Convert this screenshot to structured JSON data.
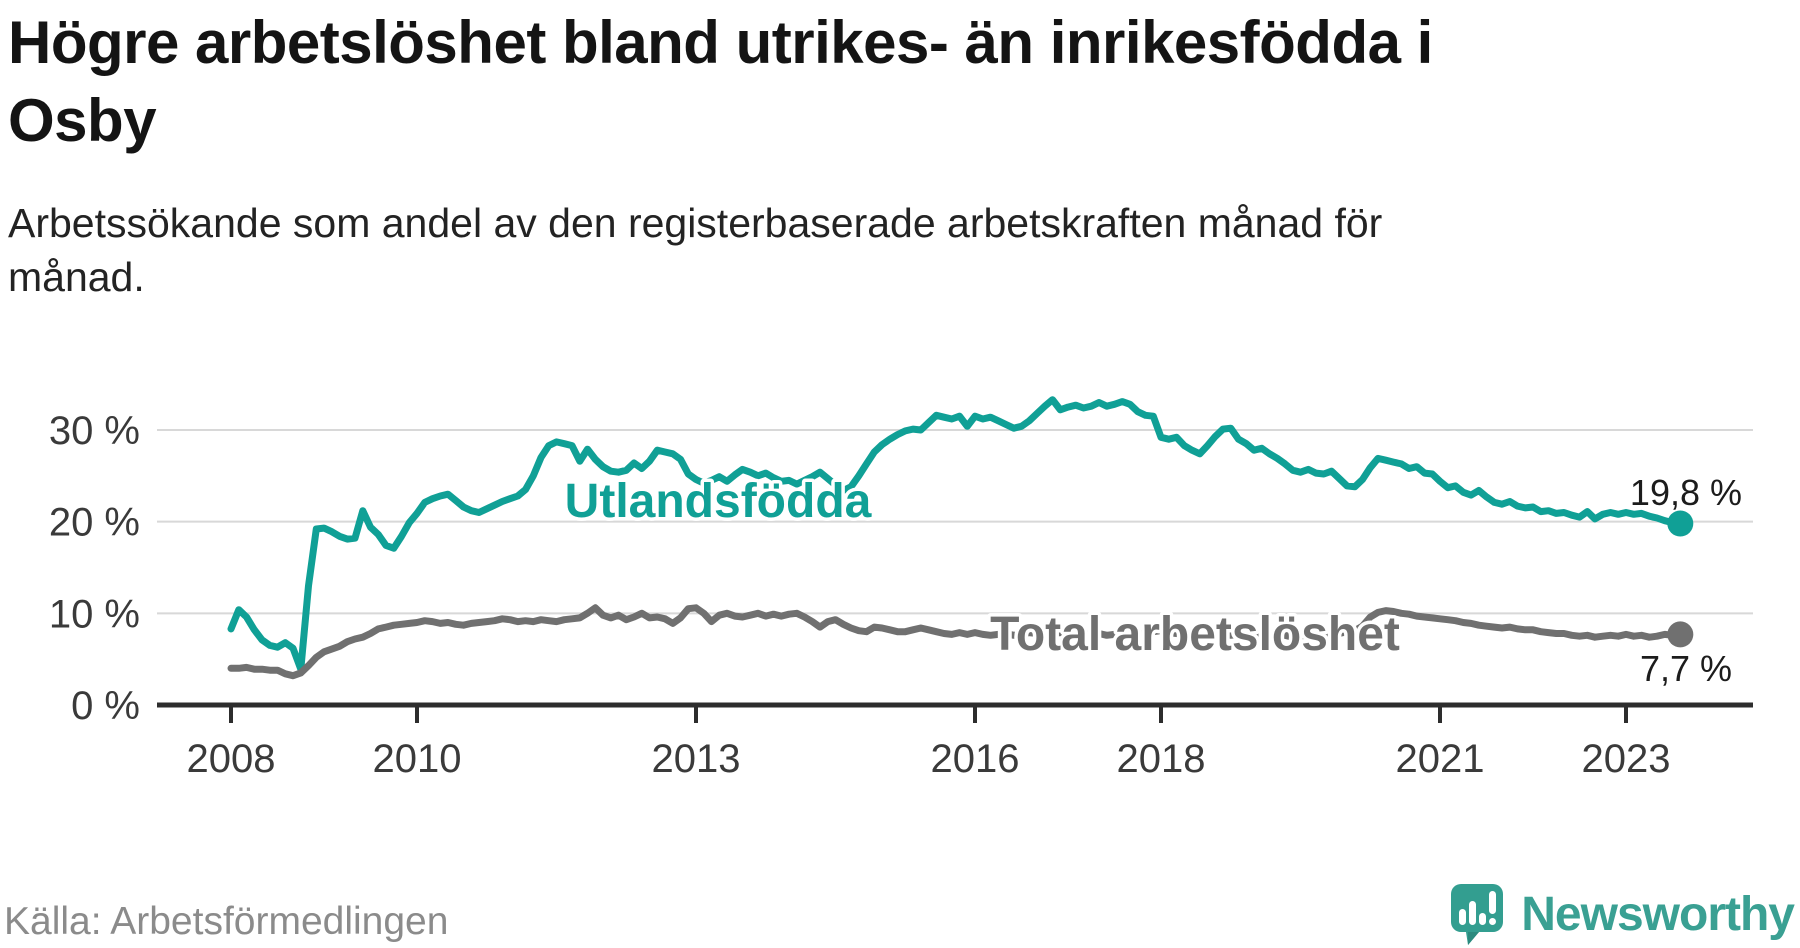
{
  "header": {
    "title_lines": [
      "Högre arbetslöshet bland utrikes- än inrikesfödda i",
      "Osby"
    ],
    "subtitle_lines": [
      "Arbetssökande som andel av den registerbaserade arbetskraften månad för",
      "månad."
    ]
  },
  "footer": {
    "source": "Källa: Arbetsförmedlingen",
    "brand": "Newsworthy"
  },
  "colors": {
    "teal": "#10a096",
    "gray": "#707070",
    "grid": "#d8d8d8",
    "axis": "#2d2d2d",
    "axis_label": "#3a3a3a",
    "value_label": "#1c1c1c",
    "logo": "#339e90"
  },
  "chart_data": {
    "type": "line",
    "title": "Högre arbetslöshet bland utrikes- än inrikesfödda i Osby",
    "subtitle": "Arbetssökande som andel av den registerbaserade arbetskraften månad för månad.",
    "frequency": "monthly",
    "x_start": {
      "year": 2008,
      "month": 1
    },
    "x_end": {
      "year": 2023,
      "month": 8
    },
    "x_axis": {
      "ticks": [
        2008,
        2010,
        2013,
        2016,
        2018,
        2021,
        2023
      ]
    },
    "y_axis": {
      "ticks": [
        0,
        10,
        20,
        30
      ],
      "tick_suffix": " %",
      "range": [
        0,
        41
      ]
    },
    "grid": true,
    "legend_position": "inline-labels",
    "series": [
      {
        "name": "Utlandsfödda",
        "color": "#10a096",
        "end_label": "19,8 %",
        "end_value": 19.8,
        "values": [
          8.3,
          10.4,
          9.6,
          8.2,
          7.1,
          6.5,
          6.3,
          6.8,
          6.2,
          3.9,
          13.0,
          19.2,
          19.3,
          18.9,
          18.4,
          18.1,
          18.2,
          21.2,
          19.4,
          18.6,
          17.4,
          17.1,
          18.4,
          19.9,
          20.9,
          22.1,
          22.5,
          22.8,
          23.0,
          22.3,
          21.6,
          21.2,
          21.0,
          21.4,
          21.8,
          22.2,
          22.5,
          22.8,
          23.5,
          25.0,
          27.0,
          28.3,
          28.7,
          28.5,
          28.3,
          26.6,
          27.9,
          26.8,
          26.0,
          25.5,
          25.4,
          25.6,
          26.4,
          25.8,
          26.6,
          27.8,
          27.6,
          27.4,
          26.8,
          25.2,
          24.6,
          24.2,
          24.5,
          24.9,
          24.4,
          25.1,
          25.7,
          25.4,
          25.0,
          25.3,
          24.8,
          24.4,
          24.5,
          24.1,
          24.5,
          24.9,
          25.4,
          24.7,
          24.0,
          23.4,
          23.8,
          25.0,
          26.3,
          27.6,
          28.4,
          29.0,
          29.5,
          29.9,
          30.1,
          30.0,
          30.8,
          31.6,
          31.4,
          31.2,
          31.5,
          30.4,
          31.5,
          31.2,
          31.4,
          31.0,
          30.6,
          30.2,
          30.4,
          31.0,
          31.8,
          32.6,
          33.3,
          32.2,
          32.5,
          32.7,
          32.4,
          32.6,
          33.0,
          32.6,
          32.8,
          33.1,
          32.8,
          32.0,
          31.6,
          31.5,
          29.2,
          29.0,
          29.2,
          28.3,
          27.8,
          27.4,
          28.3,
          29.3,
          30.1,
          30.2,
          29.0,
          28.5,
          27.8,
          28.0,
          27.4,
          26.9,
          26.3,
          25.6,
          25.4,
          25.7,
          25.3,
          25.2,
          25.5,
          24.7,
          23.9,
          23.8,
          24.6,
          25.9,
          26.9,
          26.7,
          26.5,
          26.3,
          25.8,
          26.0,
          25.3,
          25.2,
          24.4,
          23.7,
          23.9,
          23.2,
          22.9,
          23.4,
          22.7,
          22.1,
          21.9,
          22.2,
          21.7,
          21.5,
          21.6,
          21.1,
          21.2,
          20.9,
          21.0,
          20.7,
          20.5,
          21.1,
          20.3,
          20.8,
          21.0,
          20.8,
          21.0,
          20.8,
          20.9,
          20.6,
          20.4,
          20.1,
          19.9,
          19.8
        ]
      },
      {
        "name": "Total arbetslöshet",
        "color": "#707070",
        "end_label": "7,7 %",
        "end_value": 7.7,
        "values": [
          4.0,
          4.0,
          4.1,
          3.9,
          3.9,
          3.8,
          3.8,
          3.4,
          3.2,
          3.5,
          4.3,
          5.2,
          5.8,
          6.1,
          6.4,
          6.9,
          7.2,
          7.4,
          7.8,
          8.3,
          8.5,
          8.7,
          8.8,
          8.9,
          9.0,
          9.2,
          9.1,
          8.9,
          9.0,
          8.8,
          8.7,
          8.9,
          9.0,
          9.1,
          9.2,
          9.4,
          9.3,
          9.1,
          9.2,
          9.1,
          9.3,
          9.2,
          9.1,
          9.3,
          9.4,
          9.5,
          10.0,
          10.6,
          9.8,
          9.5,
          9.8,
          9.3,
          9.6,
          10.0,
          9.5,
          9.6,
          9.4,
          8.9,
          9.5,
          10.5,
          10.6,
          10.0,
          9.1,
          9.8,
          10.0,
          9.7,
          9.6,
          9.8,
          10.0,
          9.7,
          9.9,
          9.7,
          9.9,
          10.0,
          9.6,
          9.1,
          8.5,
          9.1,
          9.3,
          8.8,
          8.4,
          8.1,
          8.0,
          8.5,
          8.4,
          8.2,
          8.0,
          8.0,
          8.2,
          8.4,
          8.2,
          8.0,
          7.8,
          7.7,
          7.9,
          7.7,
          7.9,
          7.7,
          7.6,
          7.7,
          7.8,
          7.6,
          7.7,
          7.9,
          7.8,
          7.7,
          7.8,
          7.9,
          8.1,
          7.9,
          7.8,
          7.7,
          7.8,
          7.6,
          7.7,
          7.9,
          7.8,
          7.7,
          7.9,
          8.0,
          8.1,
          7.9,
          7.8,
          7.6,
          7.7,
          7.5,
          7.6,
          7.8,
          7.7,
          7.6,
          7.7,
          7.8,
          7.9,
          7.7,
          7.6,
          7.5,
          7.6,
          7.4,
          7.5,
          7.7,
          7.6,
          7.5,
          7.7,
          7.8,
          8.0,
          8.1,
          8.6,
          9.6,
          10.1,
          10.3,
          10.2,
          10.0,
          9.9,
          9.7,
          9.6,
          9.5,
          9.4,
          9.3,
          9.2,
          9.0,
          8.9,
          8.7,
          8.6,
          8.5,
          8.4,
          8.5,
          8.3,
          8.2,
          8.2,
          8.0,
          7.9,
          7.8,
          7.8,
          7.6,
          7.5,
          7.6,
          7.4,
          7.5,
          7.6,
          7.5,
          7.7,
          7.5,
          7.6,
          7.4,
          7.5,
          7.7,
          7.6,
          7.7
        ]
      }
    ]
  }
}
